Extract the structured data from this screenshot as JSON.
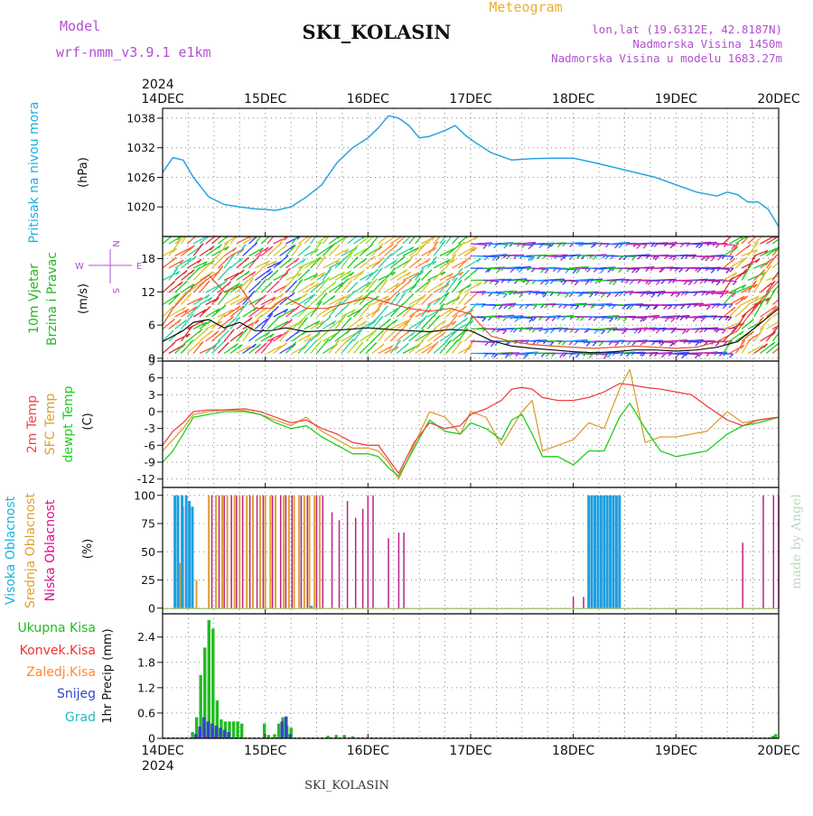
{
  "header": {
    "model_label": "Model",
    "model_name": "wrf-nmm_v3.9.1 e1km",
    "station": "SKI_KOLASIN",
    "meteogram_label": "Meteogram",
    "lonlat": "lon,lat (19.6312E, 42.8187N)",
    "elevation": "Nadmorska Visina 1450m",
    "model_elevation": "Nadmorska Visina u modelu 1683.27m",
    "footer_station": "SKI_KOLASIN",
    "watermark": "made by Angel"
  },
  "time_axis": {
    "year": "2024",
    "ticks": [
      "14DEC",
      "15DEC",
      "16DEC",
      "17DEC",
      "18DEC",
      "19DEC",
      "20DEC"
    ]
  },
  "colors": {
    "pressure": "#29a3e0",
    "wind_speed": "#111111",
    "gust": "#e05030",
    "temp2m": "#ee4444",
    "sfc_temp": "#d9a030",
    "dewpt": "#22cc22",
    "high_cloud": "#1f9ee0",
    "mid_cloud": "#e0a030",
    "low_cloud": "#bb2288",
    "total_precip": "#22bb22",
    "conv_precip": "#ee3333",
    "frozen_precip": "#ff8833",
    "snow": "#3344cc",
    "graupel": "#22bbbb",
    "label_purple": "#b050d0",
    "label_pink": "#dd1188",
    "label_cyan": "#1ab0e0"
  },
  "chart_data": [
    {
      "type": "line",
      "ylabel_name": "Pritisak na nivou mora",
      "ylabel_unit": "(hPa)",
      "yticks": [
        "1020",
        "1026",
        "1032",
        "1038"
      ],
      "ylim": [
        1014,
        1040
      ],
      "x_days": [
        0.0,
        0.1,
        0.2,
        0.3,
        0.45,
        0.6,
        0.75,
        0.9,
        1.0,
        1.1,
        1.25,
        1.4,
        1.55,
        1.7,
        1.85,
        2.0,
        2.1,
        2.2,
        2.3,
        2.4,
        2.5,
        2.6,
        2.75,
        2.85,
        2.95,
        3.05,
        3.2,
        3.4,
        3.6,
        3.8,
        4.0,
        4.2,
        4.4,
        4.6,
        4.8,
        5.0,
        5.2,
        5.4,
        5.5,
        5.6,
        5.7,
        5.8,
        5.9,
        6.0
      ],
      "series": [
        {
          "values": [
            1027,
            1030,
            1029.5,
            1026,
            1022,
            1020.5,
            1020,
            1019.6,
            1019.5,
            1019.3,
            1020,
            1022,
            1024.5,
            1029,
            1032,
            1034,
            1036,
            1038.5,
            1038,
            1036.5,
            1034,
            1034.3,
            1035.5,
            1036.5,
            1034.5,
            1033,
            1031,
            1029.5,
            1029.8,
            1029.9,
            1029.9,
            1029,
            1028,
            1027,
            1026,
            1024.5,
            1023,
            1022.2,
            1023,
            1022.5,
            1021,
            1021,
            1019.5,
            1016
          ]
        }
      ]
    },
    {
      "type": "line",
      "ylabel_name": "10m Vjetar Brzina i Pravac",
      "ylabel_unit": "(m/s)",
      "compass": {
        "n": "N",
        "s": "S",
        "w": "W",
        "e": "E"
      },
      "yticks": [
        "0",
        "6",
        "12",
        "18"
      ],
      "ylim": [
        -0.5,
        22
      ],
      "x_days": [
        0.0,
        0.1,
        0.2,
        0.3,
        0.45,
        0.6,
        0.75,
        0.9,
        1.05,
        1.2,
        1.4,
        1.6,
        1.8,
        2.0,
        2.2,
        2.4,
        2.6,
        2.8,
        3.0,
        3.2,
        3.4,
        3.6,
        3.8,
        4.0,
        4.2,
        4.4,
        4.6,
        4.8,
        5.0,
        5.2,
        5.4,
        5.6,
        5.8,
        6.0
      ],
      "series": [
        {
          "values": [
            3,
            4,
            5,
            6.5,
            7,
            5.5,
            6.5,
            5,
            5,
            5.5,
            4.8,
            5,
            5.2,
            5.5,
            5.2,
            5,
            4.8,
            5.2,
            5,
            3.2,
            2.2,
            1.8,
            1.5,
            1.2,
            1,
            1.2,
            1.5,
            1.5,
            1.3,
            1.5,
            2,
            3,
            6,
            9
          ]
        },
        {
          "values": [
            6,
            9,
            11,
            13,
            15,
            12,
            13,
            9,
            9,
            11,
            9,
            9,
            10,
            11,
            10,
            9,
            8.5,
            9,
            8,
            4,
            3,
            2.5,
            2.2,
            2,
            1.8,
            2,
            2.2,
            2,
            1.8,
            2,
            3,
            5,
            10,
            14
          ]
        }
      ]
    },
    {
      "type": "line",
      "ylabel_names": [
        "2m Temp",
        "SFC Temp",
        "dewpt Temp"
      ],
      "ylabel_unit": "(C)",
      "yticks": [
        "-12",
        "-9",
        "-6",
        "-3",
        "0",
        "3",
        "6",
        "9"
      ],
      "ylim": [
        -13.5,
        9
      ],
      "x_days": [
        0.0,
        0.1,
        0.2,
        0.3,
        0.45,
        0.6,
        0.8,
        0.95,
        1.1,
        1.25,
        1.4,
        1.55,
        1.7,
        1.85,
        2.0,
        2.1,
        2.2,
        2.3,
        2.45,
        2.6,
        2.75,
        2.9,
        3.0,
        3.15,
        3.3,
        3.4,
        3.5,
        3.6,
        3.7,
        3.85,
        4.0,
        4.15,
        4.3,
        4.45,
        4.55,
        4.7,
        4.85,
        5.0,
        5.15,
        5.3,
        5.5,
        5.65,
        5.8,
        6.0
      ],
      "series": [
        {
          "values": [
            -6,
            -3.5,
            -2,
            0,
            0.3,
            0.3,
            0.5,
            0,
            -1,
            -2,
            -1.5,
            -3,
            -4,
            -5.5,
            -6,
            -6,
            -8.5,
            -11,
            -5.5,
            -2,
            -3,
            -2.5,
            -0.5,
            0.5,
            2,
            4,
            4.3,
            4,
            2.5,
            2,
            2,
            2.5,
            3.5,
            5,
            4.8,
            4.3,
            4,
            3.5,
            3,
            1,
            -1.5,
            -2.5,
            -1.5,
            -1
          ]
        },
        {
          "values": [
            -7,
            -5,
            -3,
            -0.5,
            0,
            0.3,
            0.2,
            -0.5,
            -1.5,
            -2.5,
            -1,
            -3.5,
            -5,
            -6.5,
            -6.5,
            -7,
            -9,
            -12,
            -6,
            0,
            -1,
            -4,
            0,
            -1,
            -6,
            -3,
            0,
            2,
            -7,
            -6,
            -5,
            -2,
            -3,
            4,
            7.5,
            -5.5,
            -4.5,
            -4.5,
            -4,
            -3.5,
            0,
            -2,
            -1.5,
            -1
          ]
        },
        {
          "values": [
            -9,
            -7,
            -4,
            -1,
            -0.5,
            0,
            0,
            -0.5,
            -2,
            -3,
            -2.5,
            -4.5,
            -6,
            -7.5,
            -7.5,
            -8,
            -10,
            -11.5,
            -6.5,
            -1.5,
            -3.5,
            -4,
            -2,
            -3,
            -5,
            -1.5,
            -0.5,
            -4,
            -8,
            -8,
            -9.5,
            -7,
            -7,
            -1,
            1.5,
            -3,
            -7,
            -8,
            -7.5,
            -7,
            -4,
            -2.5,
            -2,
            -1
          ]
        }
      ]
    },
    {
      "type": "bar",
      "ylabel_names": [
        "Visoka Oblacnost",
        "Srednja Oblacnost",
        "Niska Oblacnost"
      ],
      "ylabel_unit": "(%)",
      "yticks": [
        "0",
        "25",
        "50",
        "75",
        "100"
      ],
      "ylim": [
        -5,
        107
      ],
      "series": [
        {
          "x_days": [
            0.12,
            0.15,
            0.19,
            0.23,
            0.26,
            0.29,
            1.45,
            4.15,
            4.18,
            4.21,
            4.24,
            4.27,
            4.3,
            4.33,
            4.36,
            4.39,
            4.42,
            4.45
          ],
          "values": [
            100,
            100,
            100,
            100,
            95,
            90,
            2,
            100,
            100,
            100,
            100,
            100,
            100,
            100,
            100,
            100,
            100,
            100
          ]
        },
        {
          "x_days": [
            0.17,
            0.33,
            0.45,
            0.52,
            0.58,
            0.63,
            0.7,
            0.75,
            0.82,
            0.88,
            0.95,
            1.0,
            1.05,
            1.1,
            1.18,
            1.23,
            1.28,
            1.33,
            1.38,
            1.43,
            1.48,
            1.53
          ],
          "values": [
            40,
            25,
            100,
            100,
            100,
            100,
            100,
            100,
            100,
            100,
            100,
            100,
            100,
            100,
            100,
            100,
            100,
            100,
            100,
            100,
            100,
            100
          ]
        },
        {
          "x_days": [
            0.2,
            0.48,
            0.55,
            0.6,
            0.67,
            0.72,
            0.78,
            0.85,
            0.92,
            0.98,
            1.07,
            1.15,
            1.2,
            1.26,
            1.35,
            1.41,
            1.5,
            1.56,
            1.65,
            1.72,
            1.8,
            1.88,
            1.95,
            2.0,
            2.05,
            2.2,
            2.3,
            2.35,
            4.0,
            4.1,
            5.65,
            5.85,
            5.95,
            6.0
          ],
          "values": [
            90,
            100,
            100,
            100,
            100,
            100,
            100,
            100,
            100,
            100,
            100,
            100,
            100,
            100,
            100,
            100,
            100,
            100,
            85,
            78,
            95,
            80,
            88,
            100,
            100,
            62,
            67,
            67,
            10,
            10,
            58,
            100,
            100,
            100
          ]
        }
      ]
    },
    {
      "type": "bar",
      "ylabel_names": [
        "Ukupna Kisa",
        "Konvek.Kisa",
        "Zaledj.Kisa",
        "Snijeg",
        "Grad"
      ],
      "ylabel_unit": "1hr Precip (mm)",
      "yticks": [
        "0",
        "0.6",
        "1.2",
        "1.8",
        "2.4"
      ],
      "ylim": [
        0,
        2.95
      ],
      "series": [
        {
          "x_days": [
            0.3,
            0.34,
            0.38,
            0.42,
            0.46,
            0.5,
            0.54,
            0.58,
            0.62,
            0.66,
            0.7,
            0.74,
            0.78,
            1.0,
            1.04,
            1.1,
            1.14,
            1.18,
            1.22,
            1.26,
            1.62,
            1.7,
            1.78,
            1.86,
            5.95,
            5.98
          ],
          "values": [
            0.15,
            0.5,
            1.5,
            2.15,
            2.8,
            2.6,
            0.9,
            0.45,
            0.4,
            0.4,
            0.4,
            0.4,
            0.35,
            0.35,
            0.08,
            0.1,
            0.35,
            0.5,
            0.3,
            0.25,
            0.06,
            0.08,
            0.08,
            0.05,
            0.06,
            0.1
          ]
        },
        {
          "x_days": [
            0.34,
            0.42,
            0.5
          ],
          "values": [
            0.05,
            0.06,
            0.05
          ]
        },
        {
          "x_days": [],
          "values": []
        },
        {
          "x_days": [
            0.31,
            0.35,
            0.39,
            0.43,
            0.47,
            0.51,
            0.55,
            0.59,
            0.63,
            1.15,
            1.19,
            1.23
          ],
          "values": [
            0.1,
            0.28,
            0.5,
            0.4,
            0.35,
            0.3,
            0.25,
            0.2,
            0.15,
            0.4,
            0.52,
            0.1
          ]
        },
        {
          "x_days": [],
          "values": []
        }
      ]
    }
  ]
}
